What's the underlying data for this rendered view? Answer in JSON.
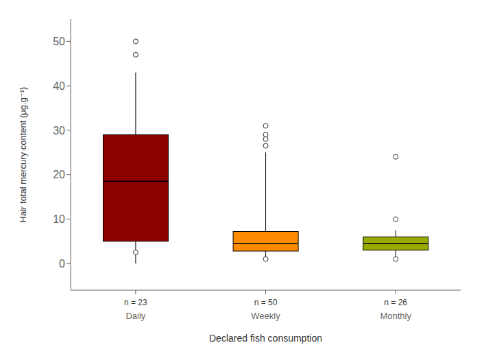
{
  "chart_data": {
    "type": "box",
    "xlabel": "Declared fish consumption",
    "ylabel": "Hair total mercury content (μg.g⁻¹)",
    "categories": [
      "Daily",
      "Weekly",
      "Monthly"
    ],
    "boxes": [
      {
        "q1": 5.0,
        "median": 18.5,
        "q3": 29.0,
        "whisker_low": 0.0,
        "whisker_high": 43.0,
        "fliers": [
          47.0,
          50.0,
          2.5
        ],
        "color": "#8B0000"
      },
      {
        "q1": 2.8,
        "median": 4.5,
        "q3": 7.2,
        "whisker_low": 0.8,
        "whisker_high": 25.0,
        "fliers": [
          31.0,
          29.0,
          28.0,
          26.5,
          1.0
        ],
        "color": "#FF8C00"
      },
      {
        "q1": 3.0,
        "median": 4.5,
        "q3": 6.0,
        "whisker_low": 0.8,
        "whisker_high": 7.5,
        "fliers": [
          24.0,
          10.0,
          1.0
        ],
        "color": "#99AA00"
      }
    ],
    "annotations": [
      "n = 23",
      "n = 50",
      "n = 26"
    ],
    "ylim": [
      -6,
      55
    ],
    "yticks": [
      0,
      10,
      20,
      30,
      40,
      50
    ],
    "grid": false
  }
}
